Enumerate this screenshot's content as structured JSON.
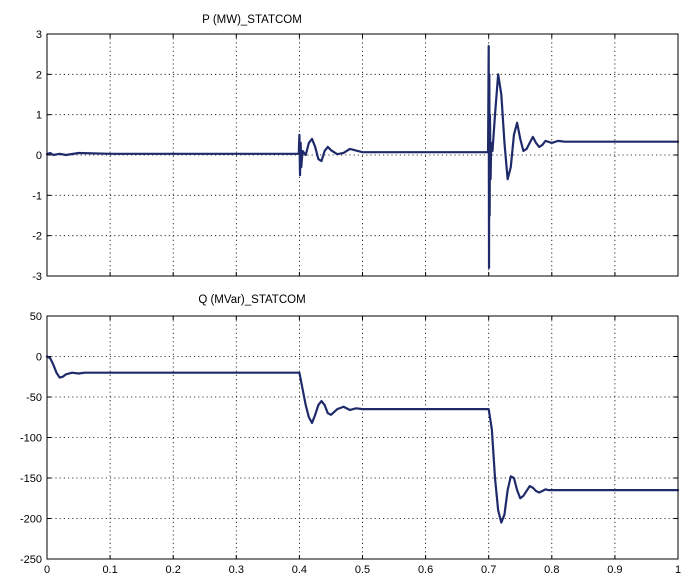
{
  "colors": {
    "series": "#1f2a6b",
    "background": "#ffffff",
    "axes": "#000000"
  },
  "chart_data": [
    {
      "type": "line",
      "title": "P (MW)_STATCOM",
      "xlim": [
        0,
        1
      ],
      "ylim": [
        -3,
        3
      ],
      "grid": true,
      "xticks": [
        0,
        0.1,
        0.2,
        0.3,
        0.4,
        0.5,
        0.6,
        0.7,
        0.8,
        0.9,
        1
      ],
      "xtick_labels": [
        "",
        "",
        "",
        "",
        "",
        "",
        "",
        "",
        "",
        "",
        ""
      ],
      "yticks": [
        -3,
        -2,
        -1,
        0,
        1,
        2,
        3
      ],
      "ytick_labels": [
        "-3",
        "-2",
        "-1",
        "0",
        "1",
        "2",
        "3"
      ],
      "series": [
        {
          "x": [
            0,
            0.005,
            0.01,
            0.02,
            0.03,
            0.05,
            0.1,
            0.2,
            0.3,
            0.398,
            0.399,
            0.4,
            0.401,
            0.402,
            0.403,
            0.405,
            0.41,
            0.415,
            0.42,
            0.425,
            0.43,
            0.435,
            0.44,
            0.445,
            0.45,
            0.46,
            0.47,
            0.48,
            0.5,
            0.6,
            0.698,
            0.699,
            0.7,
            0.7005,
            0.701,
            0.7015,
            0.702,
            0.703,
            0.704,
            0.706,
            0.71,
            0.715,
            0.72,
            0.725,
            0.73,
            0.735,
            0.74,
            0.745,
            0.75,
            0.755,
            0.76,
            0.765,
            0.77,
            0.775,
            0.78,
            0.785,
            0.79,
            0.8,
            0.81,
            0.82,
            0.85,
            0.9,
            0.95,
            1.0
          ],
          "y": [
            0.02,
            0.05,
            0.0,
            0.03,
            0.0,
            0.05,
            0.03,
            0.03,
            0.03,
            0.03,
            0.03,
            0.5,
            -0.5,
            0.3,
            -0.3,
            0.1,
            0.0,
            0.3,
            0.4,
            0.2,
            -0.1,
            -0.15,
            0.1,
            0.2,
            0.12,
            0.02,
            0.05,
            0.15,
            0.07,
            0.07,
            0.07,
            0.1,
            2.7,
            -2.8,
            2.0,
            -1.5,
            1.0,
            -0.6,
            0.3,
            0.1,
            1.0,
            2.0,
            1.5,
            0.3,
            -0.6,
            -0.3,
            0.5,
            0.8,
            0.4,
            0.1,
            0.15,
            0.3,
            0.45,
            0.3,
            0.2,
            0.25,
            0.35,
            0.3,
            0.35,
            0.33,
            0.33,
            0.33,
            0.33,
            0.33
          ]
        }
      ]
    },
    {
      "type": "line",
      "title": "Q (MVar)_STATCOM",
      "xlim": [
        0,
        1
      ],
      "ylim": [
        -250,
        50
      ],
      "grid": true,
      "xticks": [
        0,
        0.1,
        0.2,
        0.3,
        0.4,
        0.5,
        0.6,
        0.7,
        0.8,
        0.9,
        1
      ],
      "xtick_labels": [
        "0",
        "0.1",
        "0.2",
        "0.3",
        "0.4",
        "0.5",
        "0.6",
        "0.7",
        "0.8",
        "0.9",
        "1"
      ],
      "yticks": [
        -250,
        -200,
        -150,
        -100,
        -50,
        0,
        50
      ],
      "ytick_labels": [
        "-250",
        "-200",
        "-150",
        "-100",
        "-50",
        "0",
        "50"
      ],
      "series": [
        {
          "x": [
            0,
            0.005,
            0.01,
            0.015,
            0.02,
            0.025,
            0.03,
            0.04,
            0.05,
            0.06,
            0.08,
            0.1,
            0.2,
            0.3,
            0.398,
            0.4,
            0.405,
            0.41,
            0.415,
            0.42,
            0.425,
            0.43,
            0.435,
            0.44,
            0.445,
            0.45,
            0.46,
            0.47,
            0.48,
            0.49,
            0.5,
            0.55,
            0.6,
            0.65,
            0.698,
            0.7,
            0.705,
            0.71,
            0.715,
            0.72,
            0.725,
            0.73,
            0.735,
            0.74,
            0.745,
            0.75,
            0.755,
            0.76,
            0.765,
            0.77,
            0.775,
            0.78,
            0.785,
            0.79,
            0.795,
            0.8,
            0.81,
            0.82,
            0.85,
            0.9,
            0.95,
            1.0
          ],
          "y": [
            0,
            -2,
            -10,
            -20,
            -26,
            -25,
            -22,
            -20,
            -21,
            -20,
            -20,
            -20,
            -20,
            -20,
            -20,
            -20,
            -40,
            -60,
            -75,
            -82,
            -72,
            -60,
            -55,
            -60,
            -70,
            -72,
            -65,
            -62,
            -66,
            -64,
            -65,
            -65,
            -65,
            -65,
            -65,
            -65,
            -90,
            -150,
            -190,
            -205,
            -195,
            -165,
            -148,
            -150,
            -165,
            -175,
            -172,
            -166,
            -160,
            -162,
            -166,
            -168,
            -166,
            -164,
            -165,
            -165,
            -165,
            -165,
            -165,
            -165,
            -165,
            -165
          ]
        }
      ]
    }
  ]
}
